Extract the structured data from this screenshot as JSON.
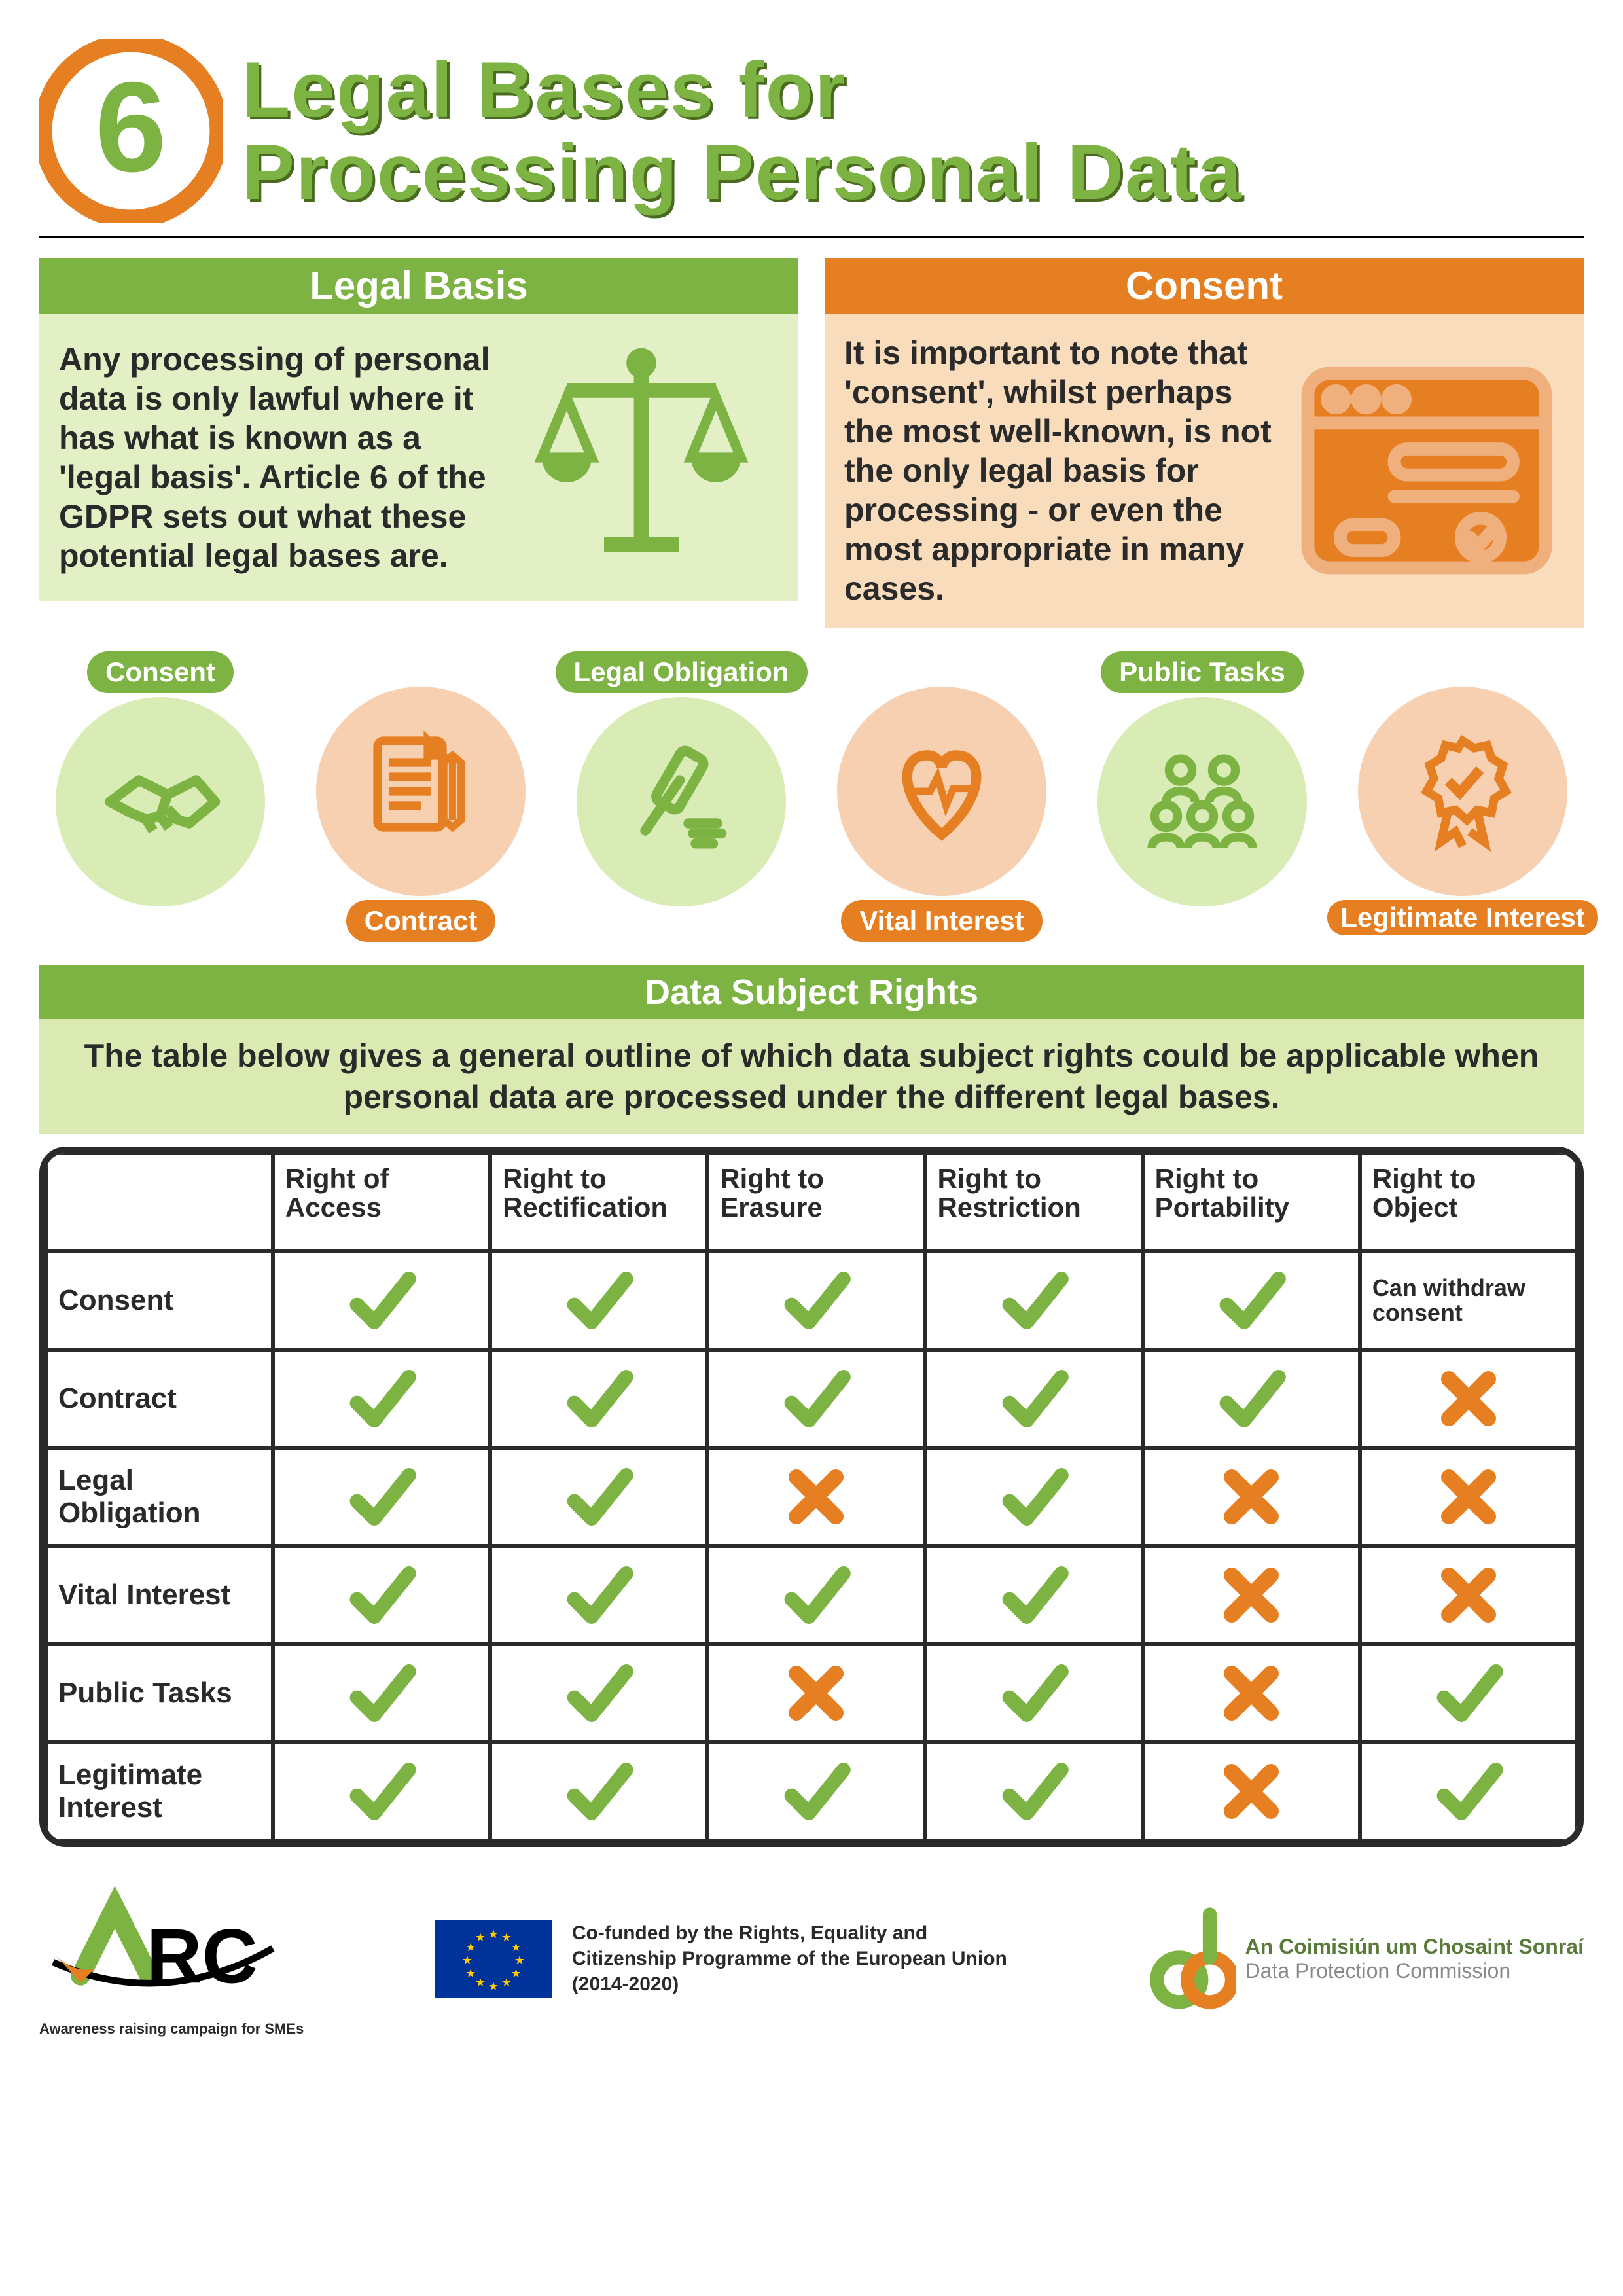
{
  "colors": {
    "green": "#7cb342",
    "green_light": "#d9ecb5",
    "green_pale": "#e3efc4",
    "green_dark_shadow": "#4a6b1f",
    "orange": "#e67e22",
    "orange_light": "#f6d0b0",
    "orange_pale": "#f8dcbb",
    "text": "#2a2a2a",
    "eu_blue": "#003399",
    "eu_gold": "#ffcc00"
  },
  "header": {
    "number": "6",
    "title_line1": "Legal Bases for",
    "title_line2": "Processing Personal Data"
  },
  "cards": {
    "legal_basis": {
      "header": "Legal Basis",
      "text": "Any processing of personal data is only lawful where it has what is known as a 'legal basis'. Article 6 of the GDPR sets out what these potential legal bases are."
    },
    "consent": {
      "header": "Consent",
      "text": "It is important to note that 'consent', whilst perhaps the most well-known, is not the only legal basis for processing - or even the most appropriate in many cases."
    }
  },
  "bases": [
    {
      "label": "Consent",
      "color": "green",
      "label_pos": "top",
      "icon": "handshake"
    },
    {
      "label": "Contract",
      "color": "orange",
      "label_pos": "bottom",
      "icon": "document"
    },
    {
      "label": "Legal Obligation",
      "color": "green",
      "label_pos": "top",
      "icon": "gavel"
    },
    {
      "label": "Vital Interest",
      "color": "orange",
      "label_pos": "bottom",
      "icon": "heart"
    },
    {
      "label": "Public Tasks",
      "color": "green",
      "label_pos": "top",
      "icon": "people"
    },
    {
      "label": "Legitimate Interest",
      "color": "orange",
      "label_pos": "bottom",
      "icon": "ribbon"
    }
  ],
  "dsr": {
    "header": "Data Subject Rights",
    "sub": "The table below gives a general outline of which data subject rights could be applicable when personal data are processed under the different legal bases."
  },
  "table": {
    "columns": [
      "",
      "Right of Access",
      "Right to Rectification",
      "Right to Erasure",
      "Right to Restriction",
      "Right to Portability",
      "Right to Object"
    ],
    "rows": [
      {
        "label": "Consent",
        "cells": [
          "check",
          "check",
          "check",
          "check",
          "check",
          "note"
        ],
        "note": "Can withdraw consent"
      },
      {
        "label": "Contract",
        "cells": [
          "check",
          "check",
          "check",
          "check",
          "check",
          "cross"
        ]
      },
      {
        "label": "Legal Obligation",
        "cells": [
          "check",
          "check",
          "cross",
          "check",
          "cross",
          "cross"
        ]
      },
      {
        "label": "Vital Interest",
        "cells": [
          "check",
          "check",
          "check",
          "check",
          "cross",
          "cross"
        ]
      },
      {
        "label": "Public Tasks",
        "cells": [
          "check",
          "check",
          "cross",
          "check",
          "cross",
          "check"
        ]
      },
      {
        "label": "Legitimate Interest",
        "cells": [
          "check",
          "check",
          "check",
          "check",
          "cross",
          "check"
        ]
      }
    ],
    "check_color": "#7cb342",
    "cross_color": "#e67e22"
  },
  "footer": {
    "arc_main": "ARC",
    "arc_sub": "Awareness raising campaign for SMEs",
    "cofund": "Co-funded by the Rights, Equality and Citizenship Programme of the European Union (2014-2020)",
    "dpc_ga": "An Coimisiún um Chosaint Sonraí",
    "dpc_en": "Data Protection Commission"
  }
}
